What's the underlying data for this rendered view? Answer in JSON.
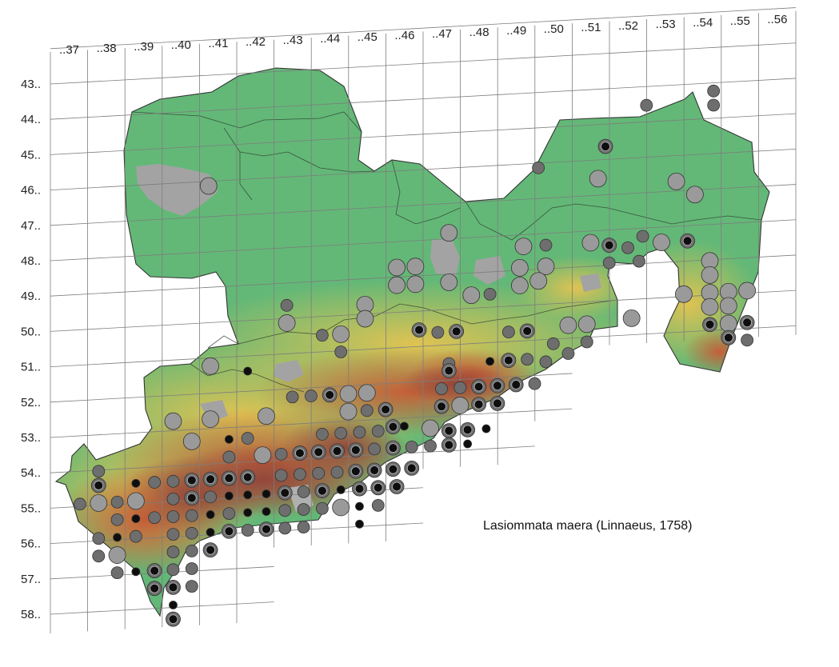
{
  "map": {
    "species": "Lasiommata maera (Linnaeus, 1758)",
    "column_labels": [
      "..37",
      "..38",
      "..39",
      "..40",
      "..41",
      "..42",
      "..43",
      "..44",
      "..45",
      "..46",
      "..47",
      "..48",
      "..49",
      "..50",
      "..51",
      "..52",
      "..53",
      "..54",
      "..55",
      "..56"
    ],
    "row_labels": [
      "43..",
      "44..",
      "45..",
      "46..",
      "47..",
      "48..",
      "49..",
      "50..",
      "51..",
      "52..",
      "53..",
      "54..",
      "55..",
      "56..",
      "57..",
      "58.."
    ],
    "colors": {
      "lowland": "#63b877",
      "midland": "#e3c24c",
      "upland": "#cf6f38",
      "highland": "#9a4a3a",
      "urban": "#a3a3a3",
      "marker_light": "#9a9a9a",
      "marker_dark": "#6e6e6e",
      "marker_black": "#0e0e0e"
    }
  }
}
